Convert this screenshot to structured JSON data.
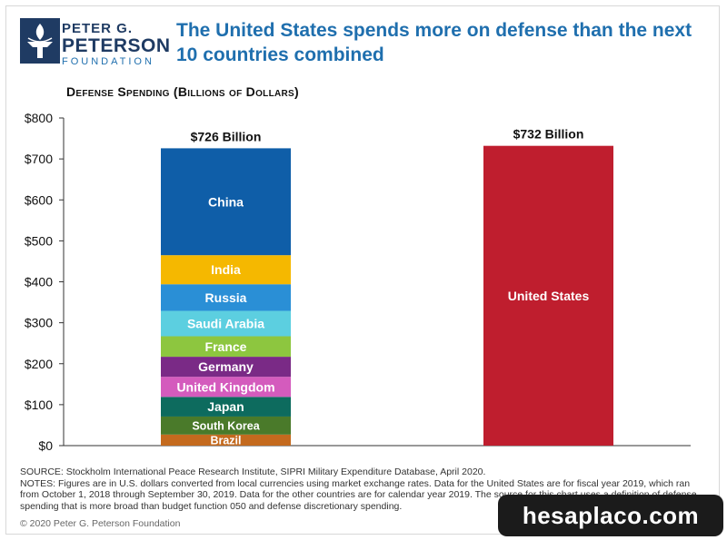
{
  "header": {
    "logo_line1": "PETER G.",
    "logo_line2": "PETERSON",
    "logo_line3": "FOUNDATION",
    "headline": "The United States spends more on defense than the next 10 countries combined"
  },
  "chart_data": {
    "type": "bar",
    "title": "Defense Spending (Billions of Dollars)",
    "ylim": [
      0,
      800
    ],
    "yticks": [
      "$0",
      "$100",
      "$200",
      "$300",
      "$400",
      "$500",
      "$600",
      "$700",
      "$800"
    ],
    "grid": false,
    "bars": [
      {
        "total_label": "$726 Billion",
        "total": 726,
        "stack": [
          {
            "name": "Brazil",
            "value": 27,
            "color": "#c46a1e"
          },
          {
            "name": "South Korea",
            "value": 44,
            "color": "#4a7a2a"
          },
          {
            "name": "Japan",
            "value": 48,
            "color": "#0d6b5e"
          },
          {
            "name": "United Kingdom",
            "value": 49,
            "color": "#d45bbd"
          },
          {
            "name": "Germany",
            "value": 49,
            "color": "#7a2a86"
          },
          {
            "name": "France",
            "value": 50,
            "color": "#8dc63f"
          },
          {
            "name": "Saudi Arabia",
            "value": 62,
            "color": "#5ccfe0"
          },
          {
            "name": "Russia",
            "value": 65,
            "color": "#2a8fd6"
          },
          {
            "name": "India",
            "value": 71,
            "color": "#f5b800"
          },
          {
            "name": "China",
            "value": 261,
            "color": "#0f5ea8"
          }
        ]
      },
      {
        "total_label": "$732 Billion",
        "total": 732,
        "stack": [
          {
            "name": "United States",
            "value": 732,
            "color": "#bf1e2e"
          }
        ]
      }
    ]
  },
  "footer": {
    "source": "SOURCE: Stockholm International Peace Research Institute, SIPRI Military Expenditure Database, April 2020.",
    "notes": "NOTES: Figures are in U.S. dollars converted from local currencies using market exchange rates. Data for the United States are for fiscal year 2019, which ran from October 1, 2018 through September 30, 2019. Data for the other countries are for calendar year 2019. The source for this chart uses a definition of defense spending that is more broad than budget function 050 and defense discretionary spending.",
    "copyright": "© 2020 Peter G. Peterson Foundation",
    "watermark": "hesaplaco.com"
  }
}
